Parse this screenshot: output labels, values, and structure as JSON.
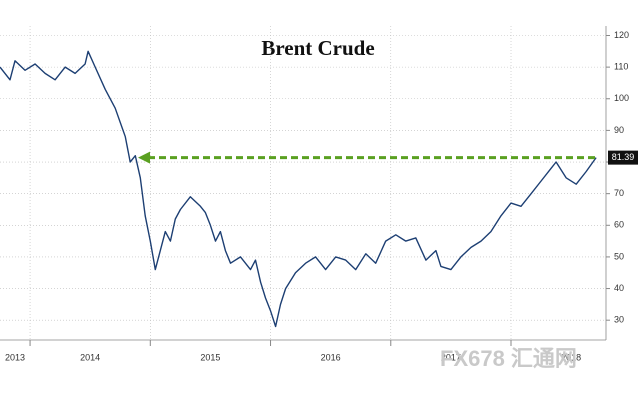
{
  "chart_data": {
    "type": "line",
    "title": "Brent Crude",
    "watermark": "FX678 汇通网",
    "x": [
      2013.75,
      2013.833,
      2013.875,
      2013.958,
      2014.042,
      2014.125,
      2014.208,
      2014.292,
      2014.375,
      2014.458,
      2014.483,
      2014.542,
      2014.625,
      2014.708,
      2014.792,
      2014.833,
      2014.875,
      2014.917,
      2014.958,
      2015,
      2015.042,
      2015.083,
      2015.125,
      2015.167,
      2015.208,
      2015.25,
      2015.333,
      2015.417,
      2015.458,
      2015.5,
      2015.542,
      2015.583,
      2015.625,
      2015.667,
      2015.75,
      2015.833,
      2015.875,
      2015.917,
      2015.958,
      2016,
      2016.042,
      2016.083,
      2016.125,
      2016.208,
      2016.292,
      2016.375,
      2016.458,
      2016.542,
      2016.625,
      2016.708,
      2016.792,
      2016.875,
      2016.958,
      2017.042,
      2017.125,
      2017.208,
      2017.292,
      2017.375,
      2017.417,
      2017.5,
      2017.583,
      2017.667,
      2017.75,
      2017.833,
      2017.917,
      2018,
      2018.083,
      2018.167,
      2018.25,
      2018.333,
      2018.375,
      2018.458,
      2018.542,
      2018.625,
      2018.708
    ],
    "series": [
      {
        "name": "Brent Crude",
        "color": "#1d3f73",
        "values": [
          110,
          106,
          112,
          109,
          111,
          108,
          106,
          110,
          108,
          111,
          115,
          110,
          103,
          97,
          88,
          80,
          82,
          75,
          63,
          55,
          46,
          52,
          58,
          55,
          62,
          65,
          69,
          66,
          64,
          60,
          55,
          58,
          52,
          48,
          50,
          46,
          49,
          42,
          37,
          33,
          28,
          35,
          40,
          45,
          48,
          50,
          46,
          50,
          49,
          46,
          51,
          48,
          55,
          57,
          55,
          56,
          49,
          52,
          47,
          46,
          50,
          53,
          55,
          58,
          63,
          67,
          66,
          70,
          74,
          78,
          80,
          75,
          73,
          77,
          81.39
        ]
      }
    ],
    "xlim": [
      2013.75,
      2018.79
    ],
    "xticks": [
      2013,
      2014,
      2015,
      2016,
      2017,
      2018
    ],
    "ylim": [
      25,
      123
    ],
    "yticks": [
      30,
      40,
      50,
      60,
      70,
      80,
      90,
      100,
      110,
      120
    ],
    "grid": true,
    "annotation_color": "#5aa021"
  }
}
